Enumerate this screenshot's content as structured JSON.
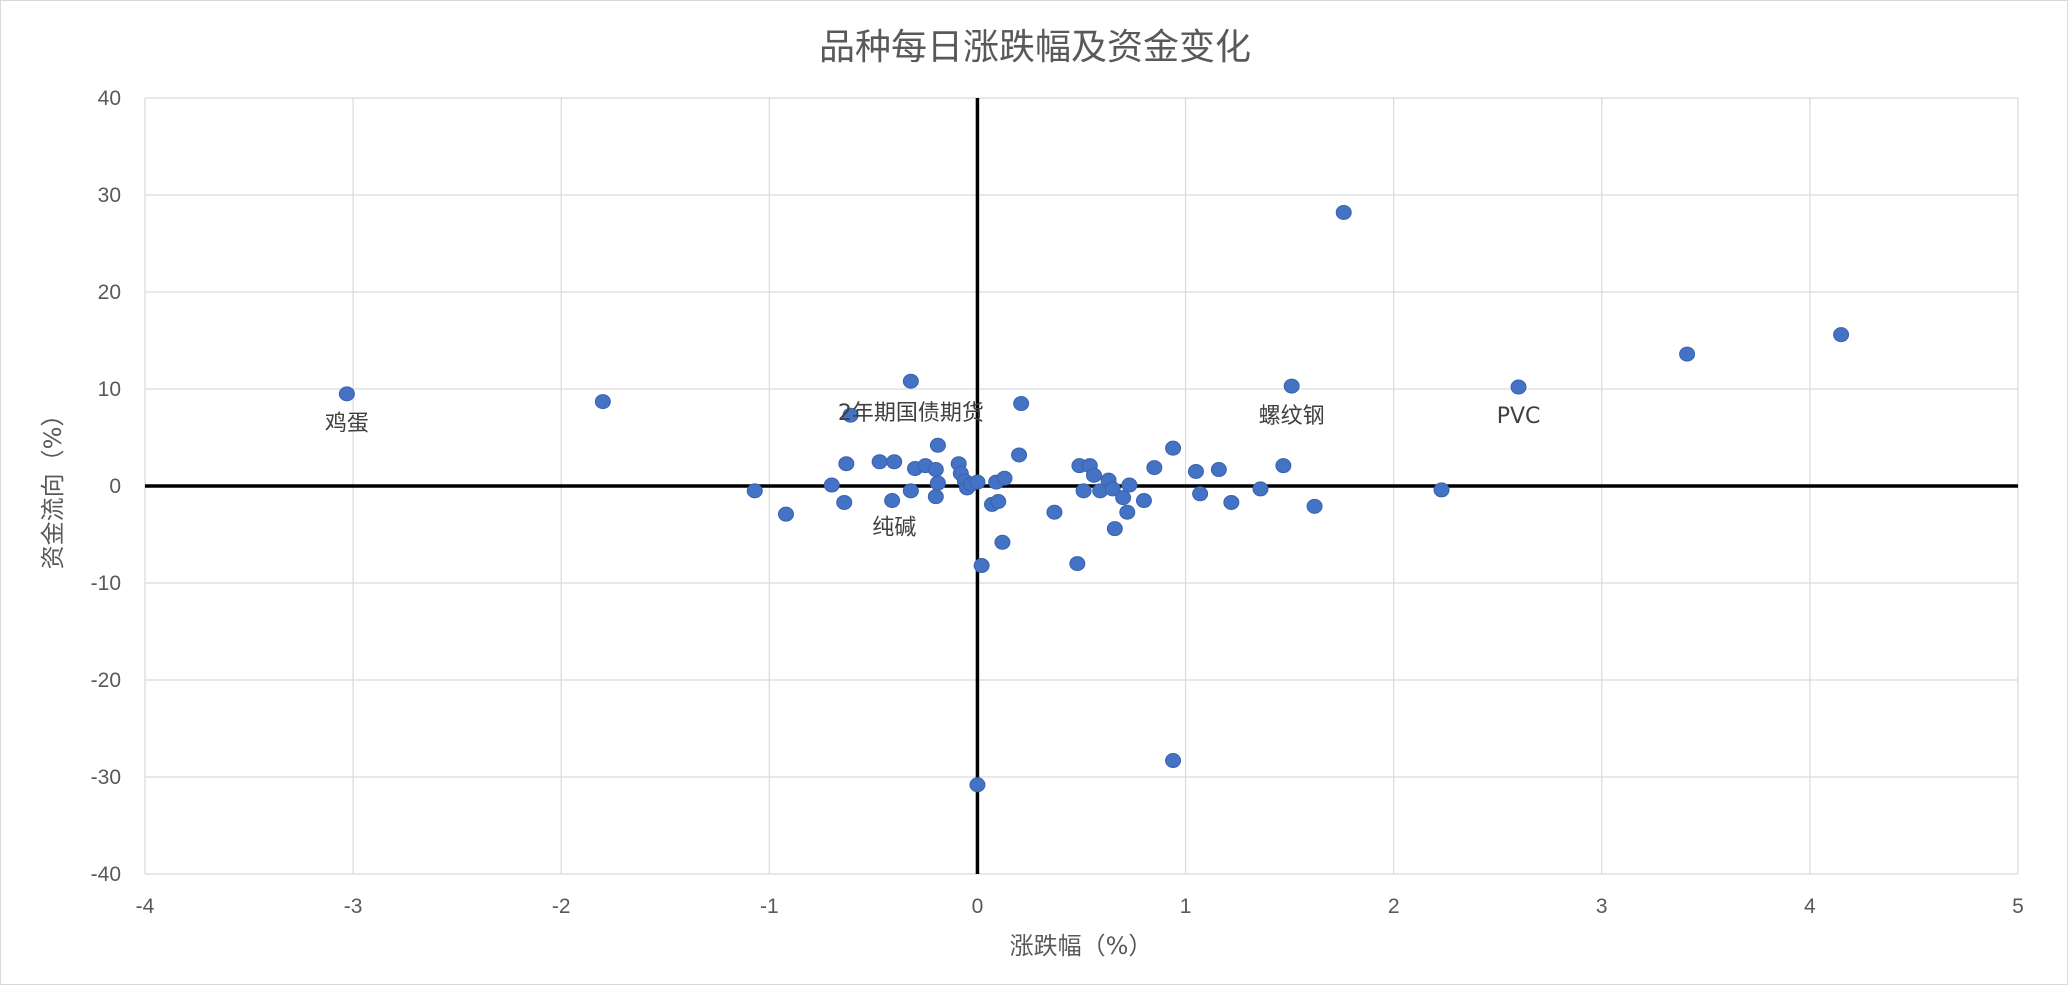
{
  "chart_data": {
    "type": "scatter",
    "title": "品种每日涨跌幅及资金变化",
    "xlabel": "涨跌幅（%）",
    "ylabel": "资金流向（%）",
    "xlim": [
      -4,
      5
    ],
    "ylim": [
      -40,
      40
    ],
    "x_ticks": [
      "-4",
      "-3",
      "-2",
      "-1",
      "0",
      "1",
      "2",
      "3",
      "4",
      "5"
    ],
    "y_ticks": [
      "-40",
      "-30",
      "-20",
      "-10",
      "0",
      "10",
      "20",
      "30",
      "40"
    ],
    "grid": true,
    "legend": "none",
    "marker_color": "#4472c4",
    "points": [
      {
        "x": -3.03,
        "y": 9.5
      },
      {
        "x": -1.8,
        "y": 8.7
      },
      {
        "x": -1.07,
        "y": -0.5
      },
      {
        "x": -0.92,
        "y": -2.9
      },
      {
        "x": -0.7,
        "y": 0.1
      },
      {
        "x": -0.64,
        "y": -1.7
      },
      {
        "x": -0.63,
        "y": 2.3
      },
      {
        "x": -0.61,
        "y": 7.3
      },
      {
        "x": -0.47,
        "y": 2.5
      },
      {
        "x": -0.41,
        "y": -1.5
      },
      {
        "x": -0.4,
        "y": 2.5
      },
      {
        "x": -0.32,
        "y": 10.8
      },
      {
        "x": -0.32,
        "y": -0.5
      },
      {
        "x": -0.3,
        "y": 1.8
      },
      {
        "x": -0.25,
        "y": 2.1
      },
      {
        "x": -0.2,
        "y": 1.7
      },
      {
        "x": -0.19,
        "y": 4.2
      },
      {
        "x": -0.19,
        "y": 0.3
      },
      {
        "x": -0.2,
        "y": -1.1
      },
      {
        "x": -0.09,
        "y": 2.3
      },
      {
        "x": -0.08,
        "y": 1.3
      },
      {
        "x": -0.06,
        "y": 0.5
      },
      {
        "x": -0.05,
        "y": -0.2
      },
      {
        "x": -0.03,
        "y": 0.2
      },
      {
        "x": 0.0,
        "y": 0.4
      },
      {
        "x": 0.02,
        "y": -8.2
      },
      {
        "x": 0.07,
        "y": -1.9
      },
      {
        "x": 0.09,
        "y": 0.4
      },
      {
        "x": 0.1,
        "y": -1.6
      },
      {
        "x": 0.12,
        "y": -5.8
      },
      {
        "x": 0.13,
        "y": 0.8
      },
      {
        "x": 0.2,
        "y": 3.2
      },
      {
        "x": 0.21,
        "y": 8.5
      },
      {
        "x": 0.37,
        "y": -2.7
      },
      {
        "x": 0.48,
        "y": -8.0
      },
      {
        "x": 0.49,
        "y": 2.1
      },
      {
        "x": 0.51,
        "y": -0.5
      },
      {
        "x": 0.54,
        "y": 2.1
      },
      {
        "x": 0.56,
        "y": 1.1
      },
      {
        "x": 0.59,
        "y": -0.5
      },
      {
        "x": 0.63,
        "y": 0.6
      },
      {
        "x": 0.65,
        "y": -0.3
      },
      {
        "x": 0.66,
        "y": -4.4
      },
      {
        "x": 0.7,
        "y": -1.2
      },
      {
        "x": 0.72,
        "y": -2.7
      },
      {
        "x": 0.73,
        "y": 0.1
      },
      {
        "x": 0.8,
        "y": -1.5
      },
      {
        "x": 0.85,
        "y": 1.9
      },
      {
        "x": 0.94,
        "y": 3.9
      },
      {
        "x": 0.94,
        "y": -28.3
      },
      {
        "x": 1.05,
        "y": 1.5
      },
      {
        "x": 1.07,
        "y": -0.8
      },
      {
        "x": 1.16,
        "y": 1.7
      },
      {
        "x": 1.22,
        "y": -1.7
      },
      {
        "x": 1.36,
        "y": -0.3
      },
      {
        "x": 1.47,
        "y": 2.1
      },
      {
        "x": 1.51,
        "y": 10.3
      },
      {
        "x": 1.62,
        "y": -2.1
      },
      {
        "x": 1.76,
        "y": 28.2
      },
      {
        "x": 2.23,
        "y": -0.4
      },
      {
        "x": 2.6,
        "y": 10.2
      },
      {
        "x": 3.41,
        "y": 13.6
      },
      {
        "x": 4.15,
        "y": 15.6
      },
      {
        "x": 0.0,
        "y": -30.8
      }
    ],
    "annotations": [
      {
        "text": "鸡蛋",
        "x": -3.03,
        "y": 5.7
      },
      {
        "text": "2年期国债期货",
        "x": -0.32,
        "y": 6.8
      },
      {
        "text": "纯碱",
        "x": -0.4,
        "y": -5.0
      },
      {
        "text": "螺纹钢",
        "x": 1.51,
        "y": 6.5
      },
      {
        "text": "PVC",
        "x": 2.6,
        "y": 6.5
      }
    ]
  }
}
